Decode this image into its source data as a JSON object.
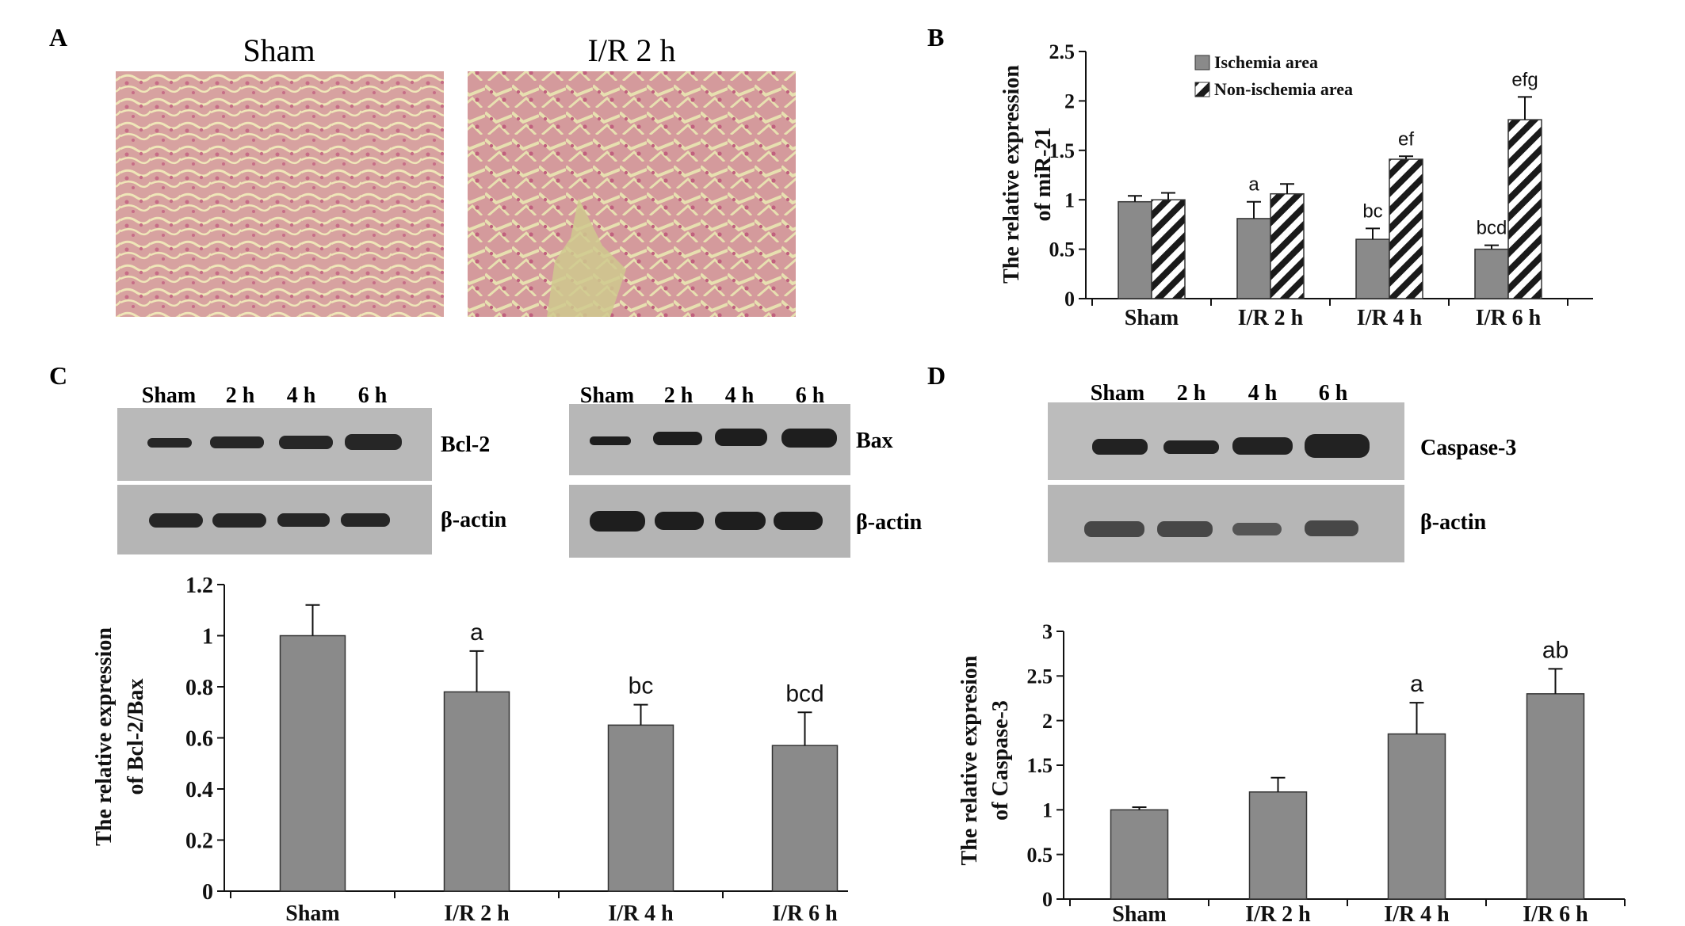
{
  "panels": {
    "A": {
      "letter": "A",
      "image_labels": [
        "Sham",
        "I/R 2 h"
      ]
    },
    "C": {
      "letter": "C",
      "blot_left": {
        "lanes": [
          "Sham",
          "2 h",
          "4 h",
          "6 h"
        ],
        "bands": [
          "Bcl-2",
          "β-actin"
        ]
      },
      "blot_right": {
        "lanes": [
          "Sham",
          "2 h",
          "4 h",
          "6 h"
        ],
        "bands": [
          "Bax",
          "β-actin"
        ]
      }
    },
    "D": {
      "letter": "D",
      "blot": {
        "lanes": [
          "Sham",
          "2 h",
          "4 h",
          "6 h"
        ],
        "bands": [
          "Caspase-3",
          "β-actin"
        ]
      }
    }
  },
  "chart_data": [
    {
      "panel": "B",
      "letter": "B",
      "type": "bar",
      "categories": [
        "Sham",
        "I/R 2 h",
        "I/R 4 h",
        "I/R 6 h"
      ],
      "ylabel_line1": "The relative expression",
      "ylabel_line2": "of miR-21",
      "ylim": [
        0,
        2.5
      ],
      "yticks": [
        "0",
        "0.5",
        "1",
        "1.5",
        "2",
        "2.5"
      ],
      "legend_position": "top-left",
      "series": [
        {
          "name": "Ischemia area",
          "color": "#8a8a8a",
          "pattern": "solid",
          "values": [
            0.98,
            0.81,
            0.6,
            0.5
          ],
          "errors": [
            0.06,
            0.17,
            0.11,
            0.04
          ],
          "annotations": [
            "",
            "a",
            "bc",
            "bcd"
          ]
        },
        {
          "name": "Non-ischemia area",
          "color": "#222222",
          "pattern": "hatch",
          "values": [
            1.0,
            1.06,
            1.41,
            1.81
          ],
          "errors": [
            0.07,
            0.1,
            0.03,
            0.23
          ],
          "annotations": [
            "",
            "",
            "ef",
            "efg"
          ]
        }
      ]
    },
    {
      "panel": "C",
      "type": "bar",
      "categories": [
        "Sham",
        "I/R 2 h",
        "I/R 4 h",
        "I/R 6 h"
      ],
      "ylabel_line1": "The relative expression",
      "ylabel_line2": "of Bcl-2/Bax",
      "ylim": [
        0,
        1.2
      ],
      "yticks": [
        "0",
        "0.2",
        "0.4",
        "0.6",
        "0.8",
        "1",
        "1.2"
      ],
      "series": [
        {
          "color": "#8a8a8a",
          "values": [
            1.0,
            0.78,
            0.65,
            0.57
          ],
          "errors": [
            0.12,
            0.16,
            0.08,
            0.13
          ],
          "annotations": [
            "",
            "a",
            "bc",
            "bcd"
          ]
        }
      ]
    },
    {
      "panel": "D",
      "type": "bar",
      "categories": [
        "Sham",
        "I/R 2 h",
        "I/R 4 h",
        "I/R 6 h"
      ],
      "ylabel_line1": "The relative expresion",
      "ylabel_line2": "of Caspase-3",
      "ylim": [
        0,
        3
      ],
      "yticks": [
        "0",
        "0.5",
        "1",
        "1.5",
        "2",
        "2.5",
        "3"
      ],
      "series": [
        {
          "color": "#8a8a8a",
          "values": [
            1.0,
            1.2,
            1.85,
            2.3
          ],
          "errors": [
            0.03,
            0.16,
            0.35,
            0.28
          ],
          "annotations": [
            "",
            "",
            "a",
            "ab"
          ]
        }
      ]
    }
  ]
}
